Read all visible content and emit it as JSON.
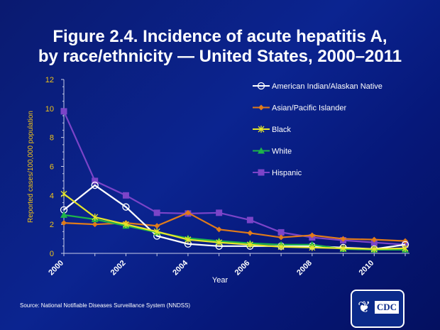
{
  "chart_data": {
    "type": "line",
    "title": "Figure 2.4. Incidence of acute hepatitis A, by race/ethnicity — United States, 2000–2011",
    "title_lines": [
      "Figure 2.4.  Incidence of acute hepatitis A,",
      "by race/ethnicity — United States, 2000–2011"
    ],
    "xlabel": "Year",
    "ylabel": "Reported cases/100,000 population",
    "x": [
      2000,
      2001,
      2002,
      2003,
      2004,
      2005,
      2006,
      2007,
      2008,
      2009,
      2010,
      2011
    ],
    "x_tick_labels": [
      "2000",
      "2002",
      "2004",
      "2006",
      "2008",
      "2010"
    ],
    "y_tick_labels": [
      "0",
      "2",
      "4",
      "6",
      "8",
      "10",
      "12"
    ],
    "ylim": [
      0,
      12
    ],
    "grid": false,
    "legend_position": "top-right",
    "series": [
      {
        "name": "American Indian/Alaskan Native",
        "color": "#ffffff",
        "marker": "open-circle",
        "values": [
          3.0,
          4.7,
          3.2,
          1.2,
          0.65,
          0.5,
          0.5,
          0.5,
          0.5,
          0.4,
          0.3,
          0.6
        ]
      },
      {
        "name": "Asian/Pacific Islander",
        "color": "#e07b1a",
        "marker": "diamond",
        "values": [
          2.1,
          2.0,
          2.1,
          1.9,
          2.8,
          1.65,
          1.4,
          1.1,
          1.25,
          1.0,
          0.95,
          0.85
        ]
      },
      {
        "name": "Black",
        "color": "#e6e62a",
        "marker": "star",
        "values": [
          4.1,
          2.5,
          2.0,
          1.5,
          0.95,
          0.75,
          0.6,
          0.45,
          0.4,
          0.35,
          0.3,
          0.35
        ]
      },
      {
        "name": "White",
        "color": "#1db34a",
        "marker": "triangle",
        "values": [
          2.65,
          2.35,
          1.9,
          1.45,
          1.05,
          0.85,
          0.7,
          0.6,
          0.6,
          0.3,
          0.25,
          0.25
        ]
      },
      {
        "name": "Hispanic",
        "color": "#7b44c8",
        "marker": "square",
        "values": [
          9.8,
          5.0,
          4.0,
          2.8,
          2.75,
          2.8,
          2.3,
          1.45,
          1.1,
          0.9,
          0.75,
          0.6
        ]
      }
    ]
  },
  "source": "Source: National  Notifiable Diseases Surveillance System (NNDSS)",
  "logo": {
    "text": "CDC"
  },
  "colors": {
    "axis_text": "#f0c419",
    "background": "#0b2490"
  }
}
